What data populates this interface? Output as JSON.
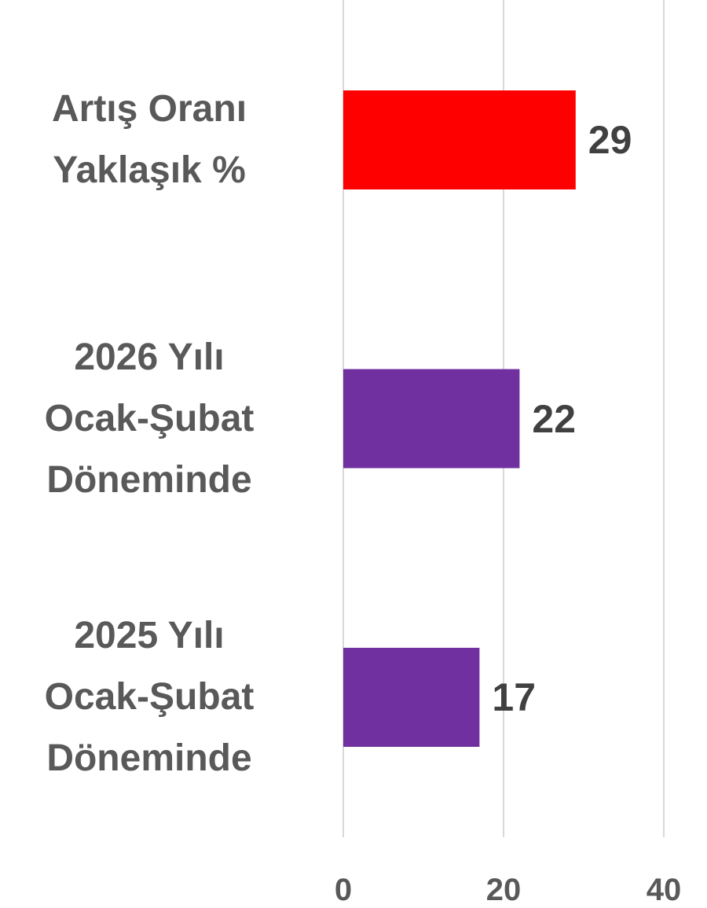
{
  "chart_data": {
    "type": "bar",
    "orientation": "horizontal",
    "categories": [
      "Artış Oranı\nYaklaşık %",
      "2026 Yılı\nOcak-Şubat\nDöneminde",
      "2025 Yılı\nOcak-Şubat\nDöneminde"
    ],
    "values": [
      29,
      22,
      17
    ],
    "colors": [
      "#ff0000",
      "#7030a0",
      "#7030a0"
    ],
    "xlim": [
      0,
      40
    ],
    "xticks": [
      0,
      20,
      40
    ],
    "grid": true
  }
}
